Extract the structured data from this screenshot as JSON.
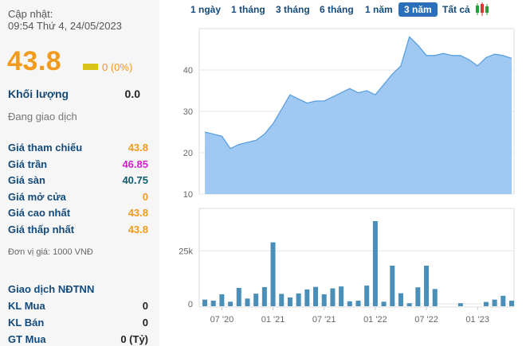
{
  "quote": {
    "updated_label": "Cập nhật:",
    "updated_time": "09:54 Thứ 4, 24/05/2023",
    "price": "43.8",
    "change": "0 (0%)",
    "volume_label": "Khối lượng",
    "volume": "0.0",
    "status": "Đang giao dịch"
  },
  "prices": [
    {
      "label": "Giá tham chiếu",
      "value": "43.8",
      "color": "#f29a1b"
    },
    {
      "label": "Giá trần",
      "value": "46.85",
      "color": "#d01fd0"
    },
    {
      "label": "Giá sàn",
      "value": "40.75",
      "color": "#0e5c6f"
    },
    {
      "label": "Giá mở cửa",
      "value": "0",
      "color": "#f29a1b"
    },
    {
      "label": "Giá cao nhất",
      "value": "43.8",
      "color": "#f29a1b"
    },
    {
      "label": "Giá thấp nhất",
      "value": "43.8",
      "color": "#f29a1b"
    }
  ],
  "unit_note": "Đơn vị giá: 1000 VNĐ",
  "foreign": {
    "title": "Giao dịch NĐTNN",
    "rows": [
      {
        "label": "KL Mua",
        "value": "0"
      },
      {
        "label": "KL Bán",
        "value": "0"
      },
      {
        "label": "GT Mua",
        "value": "0 (Tỷ)"
      }
    ]
  },
  "range_tabs": [
    "1 ngày",
    "1 tháng",
    "3 tháng",
    "6 tháng",
    "1 năm",
    "3 năm",
    "Tất cả"
  ],
  "active_tab": "3 năm",
  "colors": {
    "accent": "#2a6fb8",
    "price": "#f29a1b",
    "area": "#8ec0f0",
    "bar": "#4a8fb8"
  },
  "chart_data": [
    {
      "type": "area",
      "x": [
        "2020-05",
        "2020-06",
        "2020-07",
        "2020-08",
        "2020-09",
        "2020-10",
        "2020-11",
        "2020-12",
        "2021-01",
        "2021-02",
        "2021-03",
        "2021-04",
        "2021-05",
        "2021-06",
        "2021-07",
        "2021-08",
        "2021-09",
        "2021-10",
        "2021-11",
        "2021-12",
        "2022-01",
        "2022-02",
        "2022-03",
        "2022-04",
        "2022-05",
        "2022-06",
        "2022-07",
        "2022-08",
        "2022-09",
        "2022-10",
        "2022-11",
        "2022-12",
        "2023-01",
        "2023-02",
        "2023-03",
        "2023-04",
        "2023-05"
      ],
      "series": [
        {
          "values": [
            25,
            24.5,
            24,
            21,
            22,
            22.5,
            23,
            24.5,
            27,
            30.5,
            34,
            33,
            32,
            32.5,
            32.5,
            33.5,
            34.5,
            35.5,
            34.5,
            35,
            34,
            36.5,
            39,
            41,
            48,
            46,
            43.5,
            43.5,
            44,
            43.5,
            43.5,
            42.5,
            41,
            43,
            43.8,
            43.5,
            42.8
          ]
        }
      ],
      "yticks": [
        10,
        20,
        30,
        40
      ],
      "ylim": [
        10,
        50
      ]
    },
    {
      "type": "bar",
      "x": [
        "2020-05",
        "2020-06",
        "2020-07",
        "2020-08",
        "2020-09",
        "2020-10",
        "2020-11",
        "2020-12",
        "2021-01",
        "2021-02",
        "2021-03",
        "2021-04",
        "2021-05",
        "2021-06",
        "2021-07",
        "2021-08",
        "2021-09",
        "2021-10",
        "2021-11",
        "2021-12",
        "2022-01",
        "2022-02",
        "2022-03",
        "2022-04",
        "2022-05",
        "2022-06",
        "2022-07",
        "2022-08",
        "2022-09",
        "2022-10",
        "2022-11",
        "2022-12",
        "2023-01",
        "2023-02",
        "2023-03",
        "2023-04",
        "2023-05"
      ],
      "series": [
        {
          "values": [
            2000,
            1500,
            4500,
            1000,
            7500,
            2500,
            4800,
            7900,
            29000,
            4700,
            3000,
            4900,
            6800,
            8000,
            4500,
            7300,
            8200,
            1200,
            1500,
            8600,
            39000,
            1000,
            18000,
            5000,
            300,
            7800,
            18000,
            7000,
            0,
            0,
            300,
            0,
            0,
            900,
            2000,
            3800,
            1500
          ]
        }
      ],
      "yticks": [
        0,
        25000
      ],
      "ytick_labels": [
        "0",
        "25k"
      ],
      "ylim": [
        -1500,
        45000
      ],
      "xtick_dates": [
        "2020-07",
        "2021-01",
        "2021-07",
        "2022-01",
        "2022-07",
        "2023-01"
      ],
      "xtick_labels": [
        "07 '20",
        "01 '21",
        "07 '21",
        "01 '22",
        "07 '22",
        "01 '23"
      ]
    }
  ]
}
